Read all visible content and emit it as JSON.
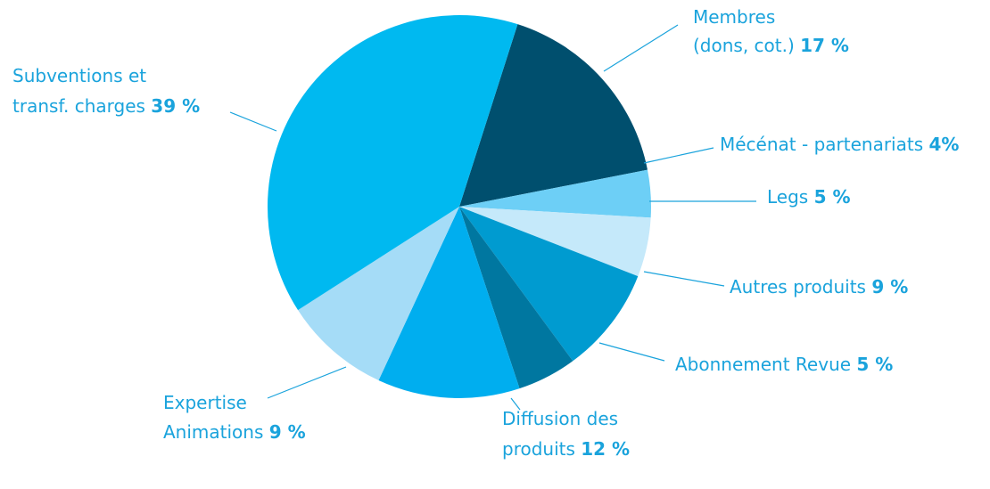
{
  "chart_data": {
    "type": "pie",
    "categories": [
      [
        "Membres",
        "(dons, cot.)"
      ],
      [
        "Mécénat - partenariats"
      ],
      [
        "Legs"
      ],
      [
        "Autres produits"
      ],
      [
        "Abonnement Revue"
      ],
      [
        "Diffusion des",
        "produits"
      ],
      [
        "Expertise",
        "Animations"
      ],
      [
        "Subventions et",
        "transf. charges"
      ]
    ],
    "values": [
      17,
      4,
      5,
      9,
      5,
      12,
      9,
      39
    ],
    "value_labels": [
      "17 %",
      "4%",
      "5 %",
      "9 %",
      "5 %",
      "12 %",
      "9 %",
      "39 %"
    ],
    "colors": [
      "#004f6e",
      "#6dcff6",
      "#c5e9fa",
      "#009bd0",
      "#0077a0",
      "#00aeef",
      "#a5dcf7",
      "#00b9f0"
    ]
  }
}
